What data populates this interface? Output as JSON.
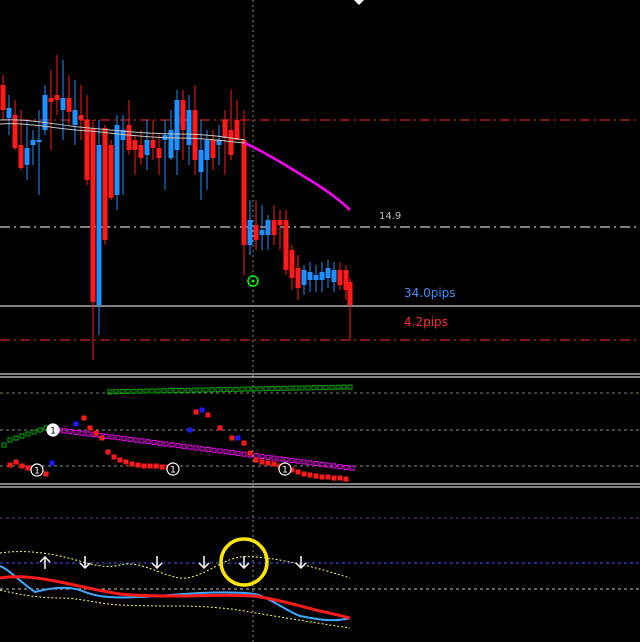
{
  "chart_data": [
    {
      "type": "candlestick",
      "panel": "price",
      "level_labels": {
        "upper_level": "14.9",
        "target_pips": "34.0pips",
        "stop_pips": "4.2pips"
      },
      "colors": {
        "bull": "#1e90ff",
        "bear": "#ff1a1a",
        "moving_average": "#ff00ff",
        "envelope": "#c8c8c8",
        "level_line": "#ff2a2a",
        "upper_level_line": "#ffffff",
        "pips_up_text": "#3f8cff",
        "pips_down_text": "#ff2a2a",
        "entry_marker": "#00ff00"
      },
      "markers": [
        "entry-circle-icon"
      ]
    },
    {
      "type": "scatter",
      "panel": "oscillator",
      "series_colors": [
        "#00b000",
        "#ff00ff",
        "#ff1a1a",
        "#1a1aff",
        "#ffffff"
      ],
      "circle_markers": [
        "1",
        "1",
        "1",
        "1"
      ]
    },
    {
      "type": "line",
      "panel": "bands",
      "series_colors": [
        "#3fa9ff",
        "#ff1a1a",
        "#ffff66"
      ],
      "arrow_markers": [
        "up-arrow-icon",
        "down-arrow-icon",
        "down-arrow-icon",
        "down-arrow-icon",
        "down-arrow-icon",
        "down-arrow-icon"
      ],
      "highlight": "yellow-circle"
    }
  ]
}
